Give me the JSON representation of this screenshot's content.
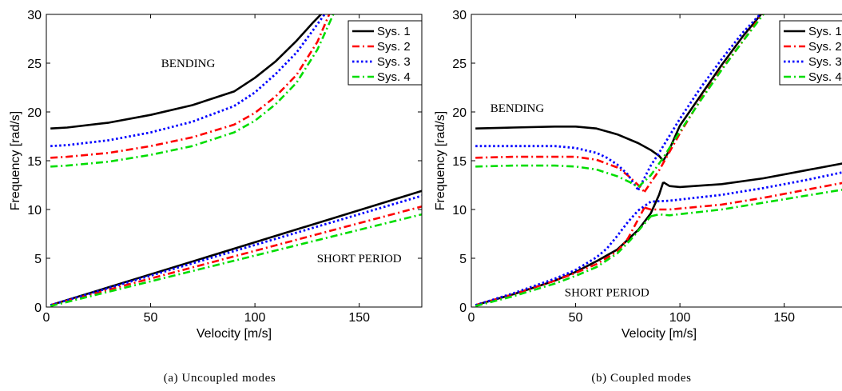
{
  "colors": {
    "Sys. 1": "#000000",
    "Sys. 2": "#ff0000",
    "Sys. 3": "#0000ff",
    "Sys. 4": "#00dd00"
  },
  "chart_data": [
    {
      "type": "line",
      "caption": "(a) Uncoupled modes",
      "xlabel": "Velocity [m/s]",
      "ylabel": "Frequency [rad/s]",
      "xlim": [
        0,
        180
      ],
      "ylim": [
        0,
        30
      ],
      "xticks": [
        0,
        50,
        100,
        150
      ],
      "yticks": [
        0,
        5,
        10,
        15,
        20,
        25,
        30
      ],
      "grid": false,
      "legend": "top-right",
      "annotations": [
        {
          "text": "BENDING",
          "x": 68,
          "y": 24.6
        },
        {
          "text": "SHORT PERIOD",
          "x": 150,
          "y": 4.6
        }
      ],
      "series": [
        {
          "name": "Sys. 1",
          "style": "solid",
          "segments": [
            {
              "x": [
                2,
                10,
                30,
                50,
                70,
                90,
                100,
                110,
                120,
                128,
                133
              ],
              "y": [
                18.3,
                18.4,
                18.9,
                19.7,
                20.7,
                22.1,
                23.5,
                25.2,
                27.3,
                29.2,
                30.3
              ]
            },
            {
              "x": [
                2,
                180
              ],
              "y": [
                0.2,
                11.9
              ]
            }
          ]
        },
        {
          "name": "Sys. 2",
          "style": "dashdot-red",
          "segments": [
            {
              "x": [
                2,
                10,
                30,
                50,
                70,
                90,
                100,
                110,
                120,
                130,
                136
              ],
              "y": [
                15.3,
                15.4,
                15.8,
                16.5,
                17.4,
                18.7,
                19.9,
                21.6,
                23.8,
                27.2,
                30.2
              ]
            },
            {
              "x": [
                2,
                180
              ],
              "y": [
                0.2,
                10.3
              ]
            }
          ]
        },
        {
          "name": "Sys. 3",
          "style": "dotted",
          "segments": [
            {
              "x": [
                2,
                10,
                30,
                50,
                70,
                90,
                100,
                110,
                120,
                130,
                134
              ],
              "y": [
                16.5,
                16.6,
                17.1,
                17.9,
                19.0,
                20.6,
                22.0,
                23.9,
                26.1,
                29.0,
                30.2
              ]
            },
            {
              "x": [
                2,
                180
              ],
              "y": [
                0.2,
                11.4
              ]
            }
          ]
        },
        {
          "name": "Sys. 4",
          "style": "dashdot-green",
          "segments": [
            {
              "x": [
                2,
                10,
                30,
                50,
                70,
                90,
                100,
                110,
                120,
                130,
                138
              ],
              "y": [
                14.4,
                14.5,
                14.9,
                15.6,
                16.5,
                17.9,
                19.1,
                20.8,
                23.0,
                26.4,
                30.2
              ]
            },
            {
              "x": [
                2,
                180
              ],
              "y": [
                0.1,
                9.5
              ]
            }
          ]
        }
      ]
    },
    {
      "type": "line",
      "caption": "(b) Coupled modes",
      "xlabel": "Velocity [m/s]",
      "ylabel": "Frequency [rad/s]",
      "xlim": [
        0,
        180
      ],
      "ylim": [
        0,
        30
      ],
      "xticks": [
        0,
        50,
        100,
        150
      ],
      "yticks": [
        0,
        5,
        10,
        15,
        20,
        25,
        30
      ],
      "grid": false,
      "legend": "top-right",
      "annotations": [
        {
          "text": "BENDING",
          "x": 22,
          "y": 20.0
        },
        {
          "text": "SHORT PERIOD",
          "x": 65,
          "y": 1.1
        }
      ],
      "series": [
        {
          "name": "Sys. 1",
          "style": "solid",
          "segments": [
            {
              "x": [
                2,
                20,
                40,
                50,
                60,
                70,
                80,
                86,
                90,
                92
              ],
              "y": [
                18.3,
                18.4,
                18.5,
                18.5,
                18.3,
                17.7,
                16.8,
                16.1,
                15.5,
                15.0
              ]
            },
            {
              "x": [
                92,
                94,
                100,
                110,
                120,
                130,
                140,
                142
              ],
              "y": [
                15.0,
                15.7,
                18.6,
                21.7,
                24.8,
                27.7,
                30.3,
                30.6
              ]
            },
            {
              "x": [
                2,
                20,
                40,
                50,
                60,
                70,
                80,
                86,
                90,
                92
              ],
              "y": [
                0.2,
                1.3,
                2.7,
                3.6,
                4.7,
                5.9,
                7.9,
                9.6,
                11.5,
                12.8
              ]
            },
            {
              "x": [
                92,
                95,
                100,
                120,
                140,
                160,
                180
              ],
              "y": [
                12.8,
                12.4,
                12.3,
                12.6,
                13.2,
                14.0,
                14.8
              ]
            }
          ]
        },
        {
          "name": "Sys. 2",
          "style": "dashdot-red",
          "segments": [
            {
              "x": [
                2,
                20,
                40,
                50,
                60,
                70,
                75,
                80,
                83
              ],
              "y": [
                15.3,
                15.4,
                15.4,
                15.4,
                15.1,
                14.3,
                13.5,
                12.5,
                11.8
              ]
            },
            {
              "x": [
                83,
                90,
                100,
                110,
                120,
                130,
                139,
                141
              ],
              "y": [
                11.8,
                14.0,
                17.8,
                21.3,
                24.4,
                27.2,
                29.9,
                30.5
              ]
            },
            {
              "x": [
                2,
                20,
                40,
                50,
                60,
                70,
                75,
                80,
                83
              ],
              "y": [
                0.2,
                1.3,
                2.7,
                3.5,
                4.4,
                5.7,
                7.0,
                9.0,
                10.2
              ]
            },
            {
              "x": [
                83,
                86,
                95,
                120,
                140,
                160,
                180
              ],
              "y": [
                10.2,
                10.0,
                10.0,
                10.5,
                11.2,
                12.0,
                12.8
              ]
            }
          ]
        },
        {
          "name": "Sys. 3",
          "style": "dotted",
          "segments": [
            {
              "x": [
                2,
                20,
                40,
                50,
                60,
                65,
                70,
                75,
                80
              ],
              "y": [
                16.5,
                16.5,
                16.5,
                16.3,
                15.8,
                15.3,
                14.6,
                13.6,
                12.0
              ]
            },
            {
              "x": [
                80,
                86,
                90,
                100,
                110,
                120,
                130,
                138,
                141
              ],
              "y": [
                12.0,
                14.5,
                15.8,
                19.3,
                22.5,
                25.4,
                28.1,
                29.9,
                30.5
              ]
            },
            {
              "x": [
                2,
                20,
                40,
                50,
                60,
                65,
                70,
                75,
                80
              ],
              "y": [
                0.2,
                1.4,
                2.9,
                3.8,
                5.1,
                6.0,
                7.3,
                8.7,
                9.9
              ]
            },
            {
              "x": [
                80,
                86,
                95,
                120,
                140,
                160,
                180
              ],
              "y": [
                9.9,
                10.8,
                10.9,
                11.5,
                12.2,
                13.0,
                13.9
              ]
            }
          ]
        },
        {
          "name": "Sys. 4",
          "style": "dashdot-green",
          "segments": [
            {
              "x": [
                2,
                20,
                40,
                50,
                60,
                70,
                76,
                80
              ],
              "y": [
                14.4,
                14.5,
                14.5,
                14.4,
                14.1,
                13.4,
                12.8,
                12.3
              ]
            },
            {
              "x": [
                80,
                86,
                92,
                100,
                110,
                120,
                130,
                140,
                143
              ],
              "y": [
                12.3,
                13.5,
                15.3,
                18.0,
                21.2,
                24.3,
                27.2,
                30.0,
                30.5
              ]
            },
            {
              "x": [
                2,
                20,
                40,
                50,
                60,
                70,
                76,
                80,
                86
              ],
              "y": [
                0.1,
                1.1,
                2.4,
                3.2,
                4.1,
                5.5,
                6.8,
                7.8,
                9.3
              ]
            },
            {
              "x": [
                86,
                90,
                95,
                120,
                140,
                160,
                180
              ],
              "y": [
                9.3,
                9.5,
                9.4,
                10.0,
                10.7,
                11.4,
                12.1
              ]
            }
          ]
        }
      ]
    }
  ]
}
